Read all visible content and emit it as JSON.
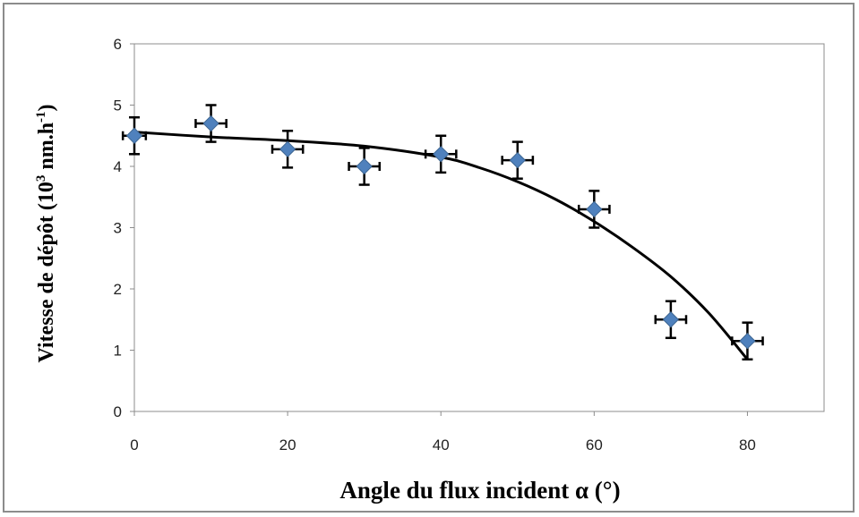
{
  "chart_data": {
    "type": "scatter",
    "xlabel": "Angle du flux incident α (°)",
    "ylabel": {
      "prefix": "Vitesse de dépôt (10",
      "exp1": "3",
      "mid": " nm.h",
      "exp2": "-1",
      "suffix": ")"
    },
    "xlim": [
      0,
      90
    ],
    "ylim": [
      0,
      6
    ],
    "xticks": [
      0,
      20,
      40,
      60,
      80
    ],
    "yticks": [
      0,
      1,
      2,
      3,
      4,
      5,
      6
    ],
    "grid": false,
    "marker_color": "#4f81bd",
    "points": [
      {
        "x": 0,
        "y": 4.5,
        "xerr": 1.5,
        "yerr": 0.3
      },
      {
        "x": 10,
        "y": 4.7,
        "xerr": 2,
        "yerr": 0.3
      },
      {
        "x": 20,
        "y": 4.28,
        "xerr": 2,
        "yerr": 0.3
      },
      {
        "x": 30,
        "y": 4.0,
        "xerr": 2,
        "yerr": 0.3
      },
      {
        "x": 40,
        "y": 4.2,
        "xerr": 2,
        "yerr": 0.3
      },
      {
        "x": 50,
        "y": 4.1,
        "xerr": 2,
        "yerr": 0.3
      },
      {
        "x": 60,
        "y": 3.3,
        "xerr": 2,
        "yerr": 0.3
      },
      {
        "x": 70,
        "y": 1.5,
        "xerr": 2,
        "yerr": 0.3
      },
      {
        "x": 80,
        "y": 1.15,
        "xerr": 2,
        "yerr": 0.3
      }
    ],
    "fit_curve": {
      "x": [
        0,
        10,
        20,
        30,
        40,
        45,
        50,
        55,
        60,
        65,
        70,
        75,
        80
      ],
      "y": [
        4.56,
        4.48,
        4.42,
        4.33,
        4.15,
        3.98,
        3.75,
        3.46,
        3.1,
        2.68,
        2.2,
        1.6,
        0.85
      ]
    }
  }
}
